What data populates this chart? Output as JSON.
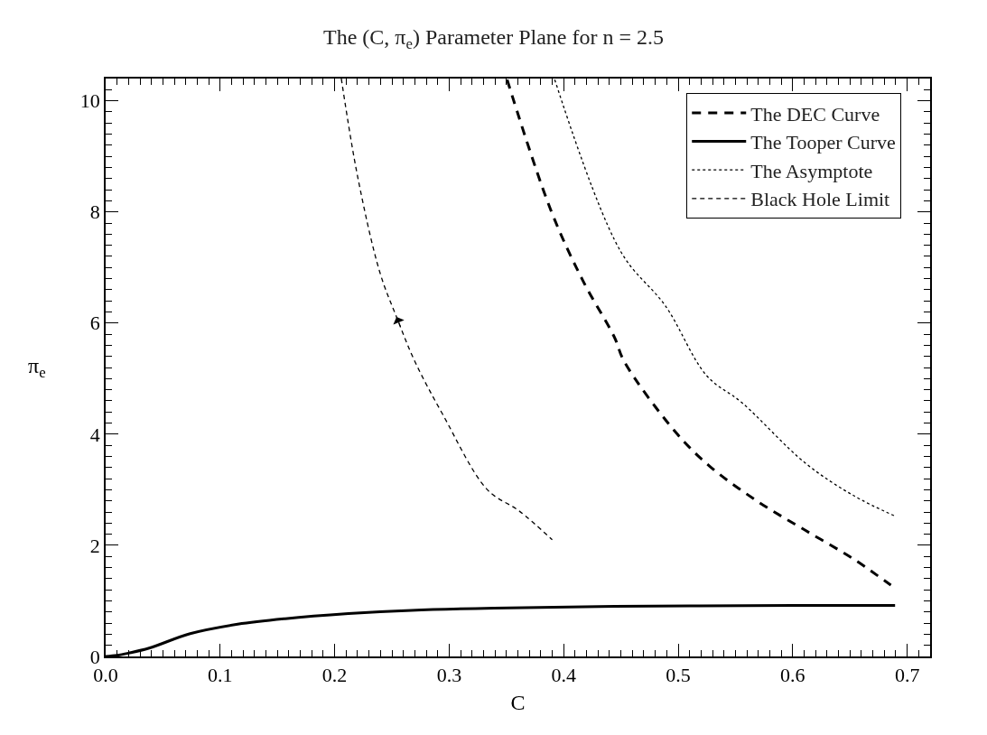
{
  "chart_data": {
    "type": "line",
    "title": "The (C, π$_{e}$) Parameter Plane for n = 2.5",
    "xlabel": "C",
    "ylabel": "π$_{e}$",
    "xlim": [
      0,
      0.72
    ],
    "xticks": [
      {
        "value": 0,
        "label": "0.0"
      },
      0.1,
      0.2,
      0.3,
      0.4,
      0.5,
      0.6,
      0.7
    ],
    "ylim": [
      0,
      10.4
    ],
    "yticks": [
      0,
      2,
      4,
      6,
      8,
      10
    ],
    "legend": "top right",
    "series": [
      {
        "name": "The DEC Curve",
        "color": "#000000",
        "line_style": "dashed",
        "x": [
          0.3506,
          0.3888,
          0.4166,
          0.4444,
          0.4528,
          0.4972,
          0.5277,
          0.5694,
          0.611,
          0.6527,
          0.6805,
          0.6894
        ],
        "values": [
          10.38,
          8.03,
          6.77,
          5.74,
          5.31,
          4.05,
          3.42,
          2.79,
          2.27,
          1.76,
          1.36,
          1.23
        ]
      },
      {
        "name": "The Tooper Curve",
        "color": "#000000",
        "line_style": "solid",
        "x": [
          0,
          0.01,
          0.02,
          0.038,
          0.0738,
          0.1153,
          0.1567,
          0.212,
          0.267,
          0.339,
          0.444,
          0.6,
          0.6894
        ],
        "values": [
          0,
          0.02,
          0.06,
          0.15,
          0.41,
          0.58,
          0.68,
          0.77,
          0.83,
          0.87,
          0.9,
          0.92,
          0.92
        ]
      },
      {
        "name": "The Asymptote",
        "color": "#000000",
        "line_style": "dotted",
        "x": [
          0.3922,
          0.45,
          0.4888,
          0.525,
          0.5555,
          0.611,
          0.6527,
          0.69
        ],
        "values": [
          10.38,
          7.28,
          6.31,
          5.05,
          4.57,
          3.48,
          2.9,
          2.52
        ]
      },
      {
        "name": "Black Hole Limit",
        "color": "#000000",
        "line_style": "dashed",
        "x": [
          0.2058,
          0.2202,
          0.2395,
          0.254,
          0.27,
          0.2948,
          0.3334,
          0.361,
          0.39
        ],
        "values": [
          10.4,
          8.62,
          6.91,
          6.11,
          5.31,
          4.34,
          3.0,
          2.62,
          2.1
        ]
      }
    ]
  }
}
